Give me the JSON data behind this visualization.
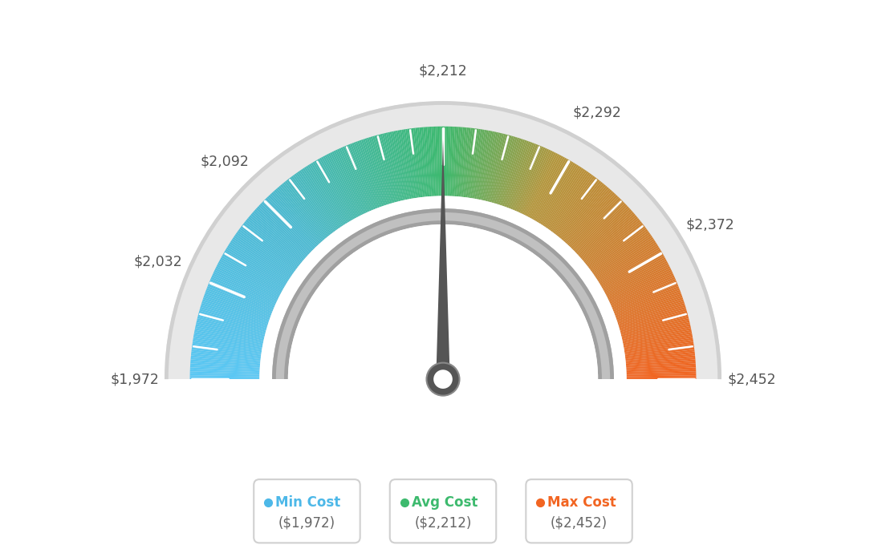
{
  "min_val": 1972,
  "max_val": 2452,
  "avg_val": 2212,
  "tick_labels": [
    "$1,972",
    "$2,032",
    "$2,092",
    "$2,212",
    "$2,292",
    "$2,372",
    "$2,452"
  ],
  "tick_values": [
    1972,
    2032,
    2092,
    2212,
    2292,
    2372,
    2452
  ],
  "legend_items": [
    {
      "label": "Min Cost",
      "value": "($1,972)",
      "color": "#4db8e8"
    },
    {
      "label": "Avg Cost",
      "value": "($2,212)",
      "color": "#3dba6e"
    },
    {
      "label": "Max Cost",
      "value": "($2,452)",
      "color": "#f26522"
    }
  ],
  "bg_color": "#ffffff",
  "needle_value": 2212,
  "color_stops": [
    [
      0.0,
      [
        91,
        200,
        245
      ]
    ],
    [
      0.25,
      [
        75,
        185,
        210
      ]
    ],
    [
      0.5,
      [
        61,
        186,
        110
      ]
    ],
    [
      0.65,
      [
        180,
        150,
        60
      ]
    ],
    [
      1.0,
      [
        242,
        101,
        34
      ]
    ]
  ]
}
